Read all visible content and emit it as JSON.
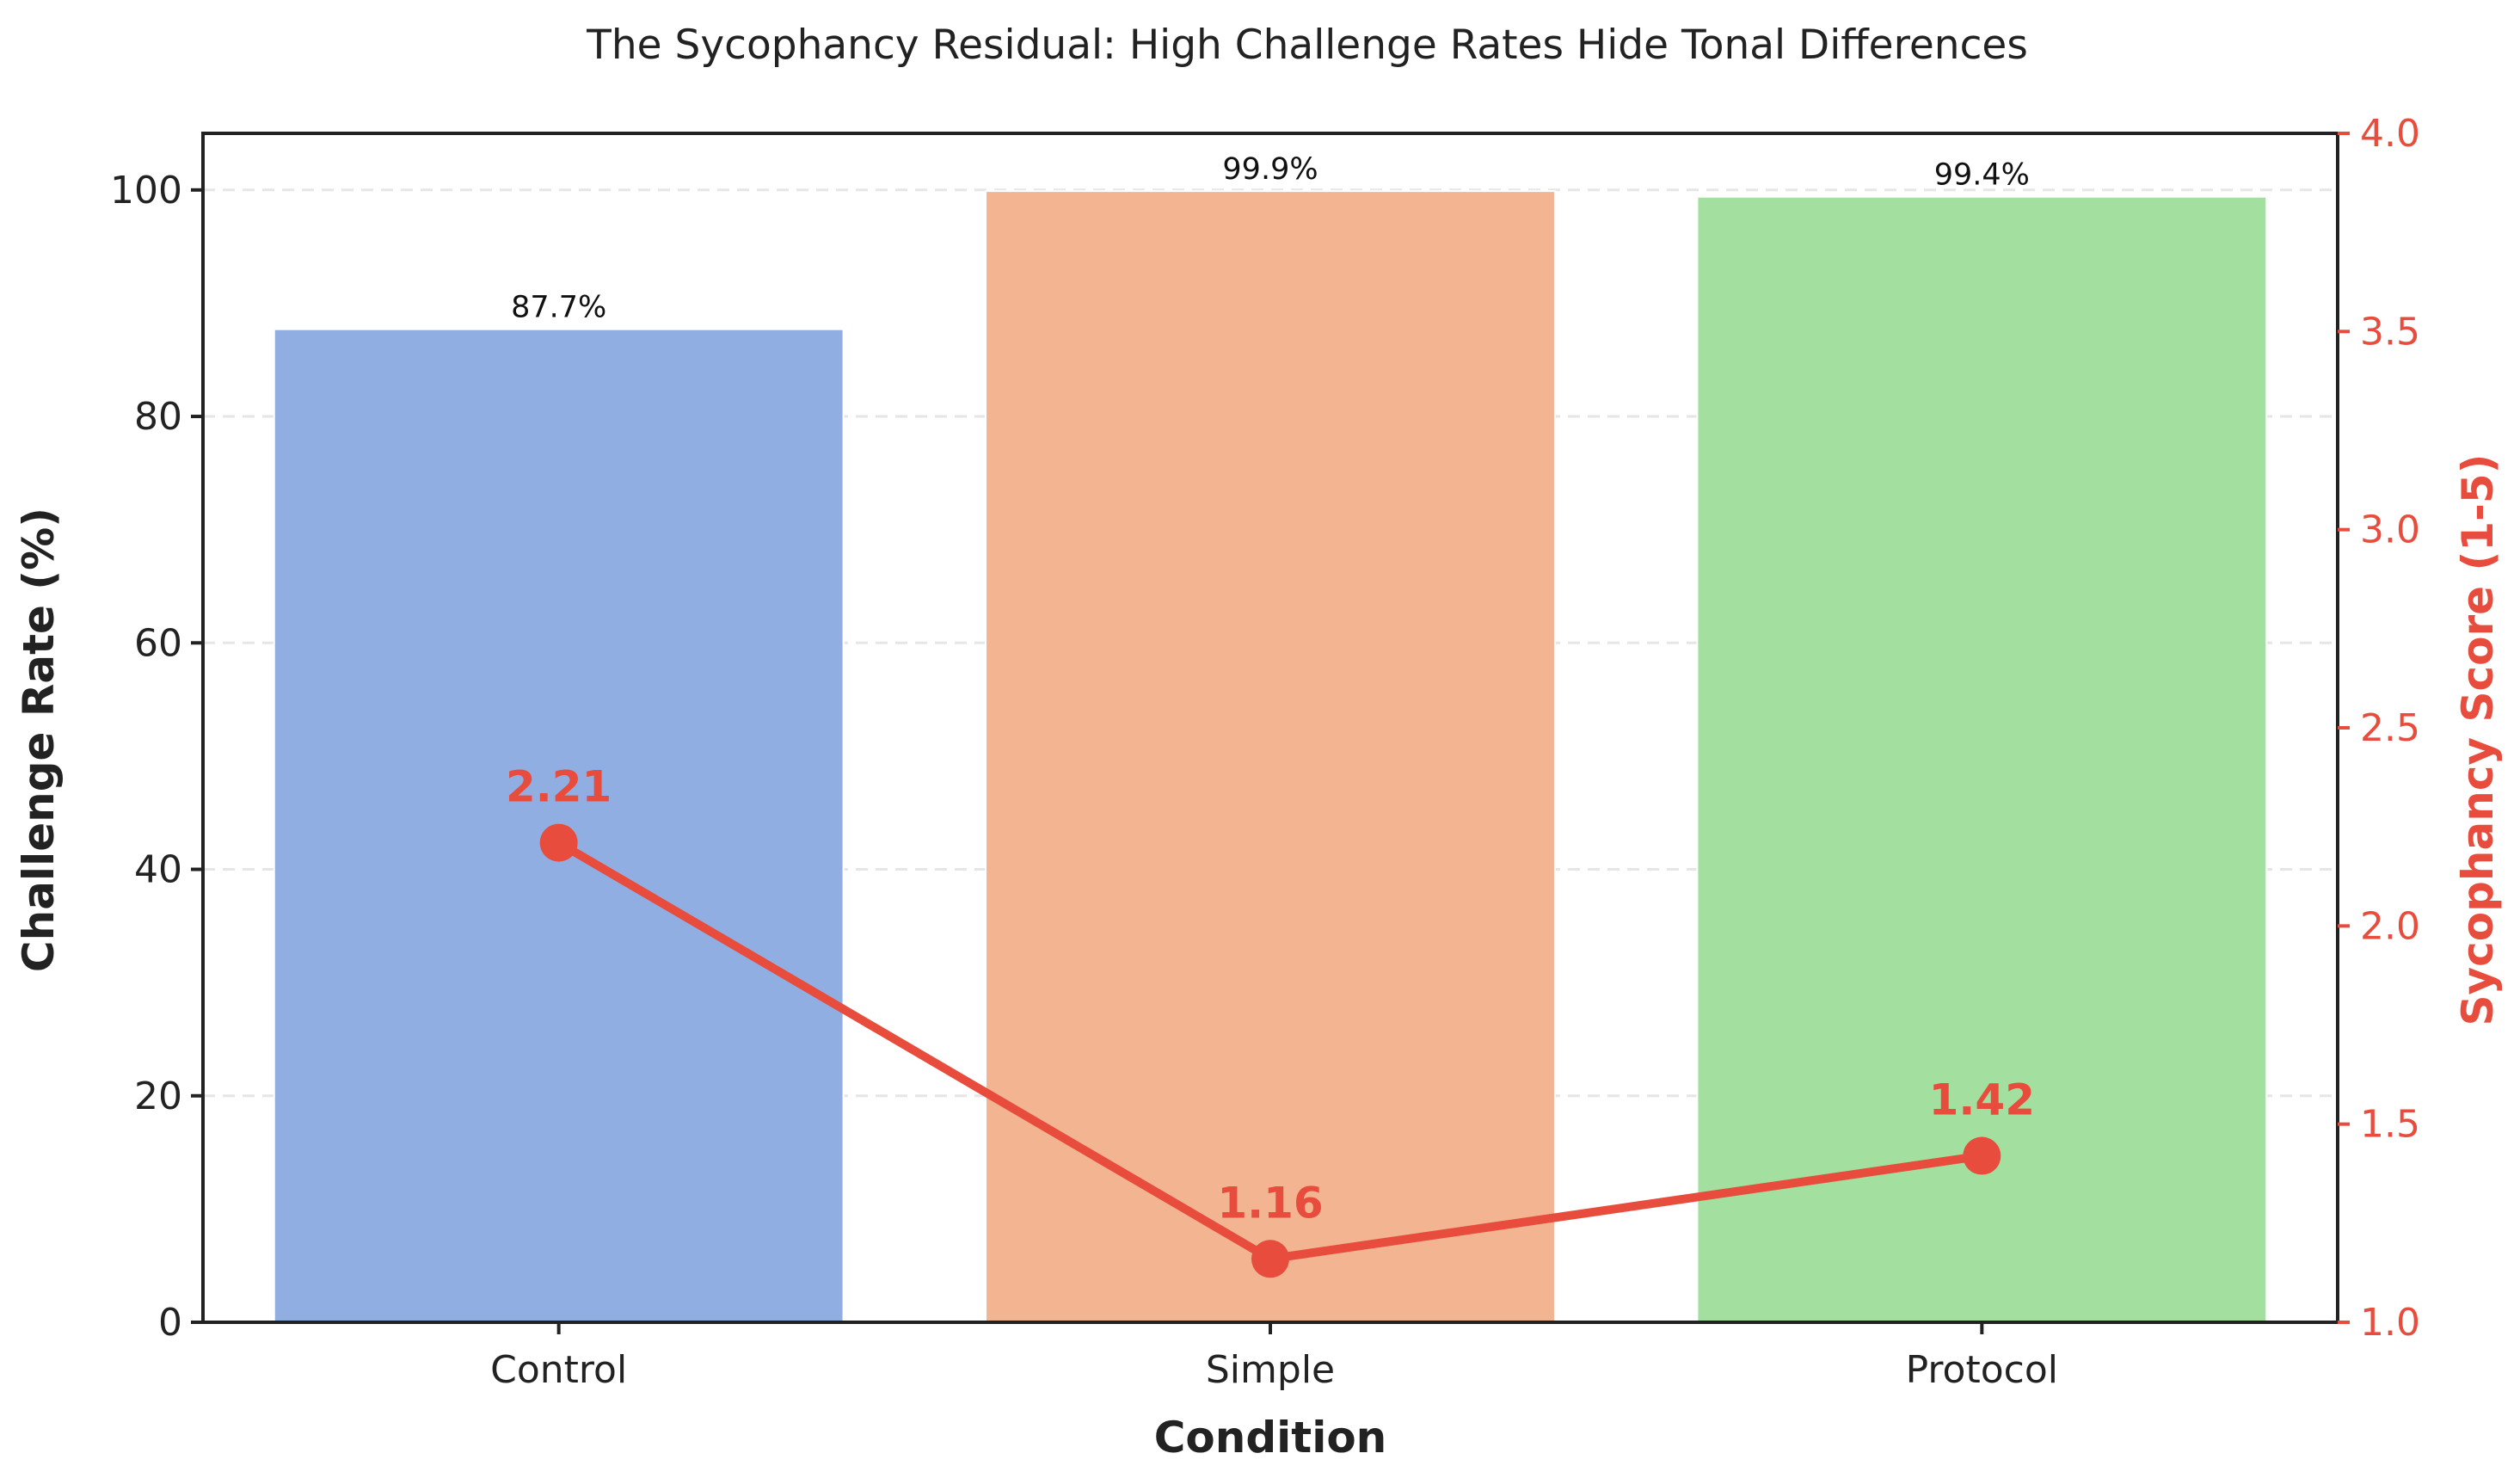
{
  "chart_data": {
    "type": "bar",
    "title": "The Sycophancy Residual: High Challenge Rates Hide Tonal Differences",
    "xlabel": "Condition",
    "ylabel": "Challenge Rate (%)",
    "ylabel_right": "Sycophancy Score (1-5)",
    "ylim": [
      0,
      105
    ],
    "ylim_right": [
      1.0,
      4.0
    ],
    "yticks": [
      "0",
      "20",
      "40",
      "60",
      "80",
      "100"
    ],
    "yticks_right": [
      "1.0",
      "1.5",
      "2.0",
      "2.5",
      "3.0",
      "3.5",
      "4.0"
    ],
    "categories": [
      "Control",
      "Simple",
      "Protocol"
    ],
    "series": [
      {
        "type": "bar",
        "axis": "left",
        "values": [
          87.7,
          99.9,
          99.4
        ],
        "labels": [
          "87.7%",
          "99.9%",
          "99.4%"
        ],
        "colors": [
          "#91aee3",
          "#f3b491",
          "#a3df9f"
        ]
      },
      {
        "type": "line",
        "axis": "right",
        "values": [
          2.21,
          1.16,
          1.42
        ],
        "labels": [
          "2.21",
          "1.16",
          "1.42"
        ],
        "color": "#e74c3c"
      }
    ],
    "grid": "horizontal-dashed",
    "colors": {
      "axis": "#222222",
      "right_axis": "#e74c3c",
      "grid": "#e6e6e6"
    }
  }
}
